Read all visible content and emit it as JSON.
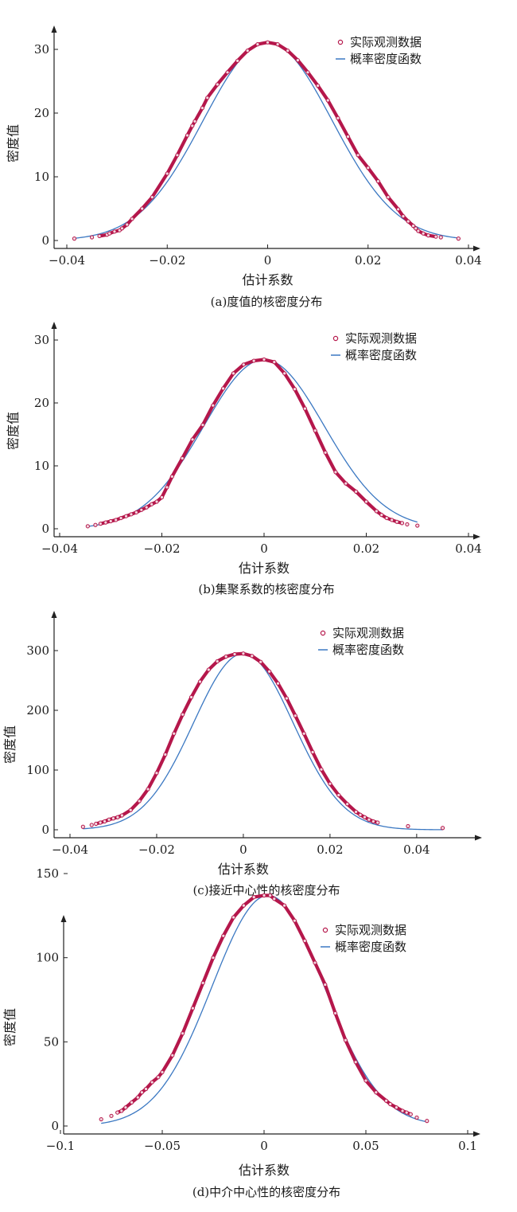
{
  "chart_data": [
    {
      "type": "line",
      "caption": "(a)度值的核密度分布",
      "xlabel": "估计系数",
      "ylabel": "密度值",
      "xlim": [
        -0.04,
        0.04
      ],
      "ylim": [
        0,
        30
      ],
      "xticks": [
        -0.04,
        -0.02,
        0,
        0.02,
        0.04
      ],
      "xtick_labels": [
        "−0.04",
        "−0.02",
        "0",
        "0.02",
        "0.04"
      ],
      "yticks": [
        0,
        10,
        20,
        30
      ],
      "ytick_labels": [
        "0",
        "10",
        "20",
        "30"
      ],
      "grid": false,
      "legend_position": "top-right",
      "series": [
        {
          "name": "实际观测数据",
          "kind": "scatter",
          "color": "#b5174b",
          "x": [
            -0.0385,
            -0.035,
            -0.0335,
            -0.032,
            -0.0315,
            -0.0305,
            -0.0295,
            -0.029,
            -0.028,
            -0.027,
            -0.025,
            -0.023,
            -0.02,
            -0.018,
            -0.016,
            -0.015,
            -0.0145,
            -0.013,
            -0.012,
            -0.01,
            -0.008,
            -0.006,
            -0.004,
            -0.002,
            0,
            0.002,
            0.004,
            0.006,
            0.008,
            0.01,
            0.012,
            0.014,
            0.016,
            0.018,
            0.02,
            0.022,
            0.024,
            0.026,
            0.027,
            0.028,
            0.029,
            0.0295,
            0.03,
            0.031,
            0.032,
            0.0335,
            0.0345,
            0.038
          ],
          "y": [
            0.3,
            0.5,
            0.7,
            0.9,
            1.1,
            1.4,
            1.6,
            1.9,
            2.5,
            3.4,
            5.0,
            6.8,
            10.5,
            13.4,
            16.5,
            18.0,
            18.7,
            20.8,
            22.4,
            24.5,
            26.4,
            28.2,
            29.8,
            30.8,
            31.1,
            30.8,
            29.8,
            28.3,
            26.4,
            24.3,
            22.0,
            19.2,
            16.3,
            13.4,
            11.4,
            9.3,
            6.8,
            4.9,
            3.8,
            3.0,
            2.3,
            1.9,
            1.5,
            1.1,
            0.8,
            0.6,
            0.5,
            0.3
          ]
        },
        {
          "name": "概率密度函数",
          "kind": "line",
          "color": "#3b78c2",
          "mu": 0,
          "peak": 31.1,
          "sigma": 0.01283
        }
      ]
    },
    {
      "type": "line",
      "caption": "(b)集聚系数的核密度分布",
      "xlabel": "估计系数",
      "ylabel": "密度值",
      "xlim": [
        -0.04,
        0.04
      ],
      "ylim": [
        0,
        30
      ],
      "xticks": [
        -0.04,
        -0.02,
        0,
        0.02,
        0.04
      ],
      "xtick_labels": [
        "−0.04",
        "−0.02",
        "0",
        "0.02",
        "0.04"
      ],
      "yticks": [
        0,
        10,
        20,
        30
      ],
      "ytick_labels": [
        "0",
        "10",
        "20",
        "30"
      ],
      "grid": false,
      "legend_position": "top-right",
      "series": [
        {
          "name": "实际观测数据",
          "kind": "scatter",
          "color": "#b5174b",
          "x": [
            -0.0345,
            -0.033,
            -0.032,
            -0.031,
            -0.03,
            -0.029,
            -0.028,
            -0.027,
            -0.026,
            -0.025,
            -0.024,
            -0.023,
            -0.022,
            -0.021,
            -0.02,
            -0.019,
            -0.018,
            -0.016,
            -0.014,
            -0.012,
            -0.01,
            -0.008,
            -0.006,
            -0.004,
            -0.002,
            0,
            0.002,
            0.004,
            0.006,
            0.008,
            0.01,
            0.012,
            0.014,
            0.016,
            0.018,
            0.02,
            0.022,
            0.023,
            0.024,
            0.025,
            0.026,
            0.027,
            0.028,
            0.03
          ],
          "y": [
            0.4,
            0.6,
            0.8,
            1.0,
            1.2,
            1.4,
            1.7,
            2.0,
            2.3,
            2.6,
            3.0,
            3.4,
            3.9,
            4.3,
            5.0,
            6.6,
            8.3,
            11.2,
            14.2,
            16.5,
            19.6,
            22.3,
            24.7,
            26.1,
            26.7,
            26.9,
            26.5,
            24.7,
            22.2,
            19.1,
            15.6,
            12.1,
            9.0,
            7.2,
            5.9,
            4.3,
            2.8,
            2.2,
            1.7,
            1.4,
            1.1,
            0.9,
            0.7,
            0.5
          ]
        },
        {
          "name": "概率密度函数",
          "kind": "line",
          "color": "#3b78c2",
          "mu": 0,
          "peak": 26.9,
          "sigma": 0.0118
        }
      ]
    },
    {
      "type": "line",
      "caption": "(c)接近中心性的核密度分布",
      "xlabel": "估计系数",
      "ylabel": "密度值",
      "xlim": [
        -0.04,
        0.047
      ],
      "ylim": [
        0,
        340
      ],
      "xticks": [
        -0.04,
        -0.02,
        0,
        0.02,
        0.04
      ],
      "xtick_labels": [
        "−0.04",
        "−0.02",
        "0",
        "0.02",
        "0.04"
      ],
      "yticks": [
        0,
        100,
        200,
        300
      ],
      "ytick_labels": [
        "0",
        "100",
        "200",
        "300"
      ],
      "grid": false,
      "legend_position": "top-right",
      "series": [
        {
          "name": "实际观测数据",
          "kind": "scatter",
          "color": "#b5174b",
          "x": [
            -0.037,
            -0.035,
            -0.034,
            -0.033,
            -0.032,
            -0.031,
            -0.03,
            -0.029,
            -0.028,
            -0.026,
            -0.024,
            -0.022,
            -0.02,
            -0.018,
            -0.016,
            -0.014,
            -0.012,
            -0.01,
            -0.008,
            -0.006,
            -0.004,
            -0.002,
            0,
            0.002,
            0.004,
            0.006,
            0.008,
            0.01,
            0.012,
            0.014,
            0.016,
            0.018,
            0.02,
            0.022,
            0.024,
            0.026,
            0.027,
            0.028,
            0.029,
            0.03,
            0.031,
            0.038,
            0.046
          ],
          "y": [
            5,
            8,
            10,
            12,
            14,
            17,
            19,
            21,
            24,
            33,
            48,
            68,
            95,
            126,
            161,
            193,
            222,
            248,
            268,
            282,
            290,
            294,
            295,
            291,
            281,
            265,
            245,
            220,
            191,
            161,
            130,
            101,
            77,
            58,
            43,
            30,
            25,
            21,
            17,
            14,
            12,
            6,
            3
          ]
        },
        {
          "name": "概率密度函数",
          "kind": "line",
          "color": "#3b78c2",
          "mu": 0,
          "peak": 295,
          "sigma": 0.0115
        }
      ]
    },
    {
      "type": "line",
      "caption": "(d)中介中心性的核密度分布",
      "xlabel": "估计系数",
      "ylabel": "密度值",
      "xlim": [
        -0.1,
        0.1
      ],
      "ylim": [
        0,
        160
      ],
      "xticks": [
        -0.1,
        -0.05,
        0,
        0.05,
        0.1
      ],
      "xtick_labels": [
        "−0.1",
        "−0.05",
        "0",
        "0.05",
        "0.1"
      ],
      "yticks": [
        0,
        50,
        100,
        150
      ],
      "ytick_labels": [
        "0",
        "50",
        "100",
        "150"
      ],
      "grid": false,
      "legend_position": "top-right",
      "series": [
        {
          "name": "实际观测数据",
          "kind": "scatter",
          "color": "#b5174b",
          "x": [
            -0.08,
            -0.075,
            -0.072,
            -0.07,
            -0.068,
            -0.065,
            -0.062,
            -0.06,
            -0.058,
            -0.055,
            -0.052,
            -0.05,
            -0.045,
            -0.04,
            -0.035,
            -0.03,
            -0.025,
            -0.02,
            -0.015,
            -0.01,
            -0.005,
            0,
            0.003,
            0.005,
            0.01,
            0.015,
            0.02,
            0.025,
            0.03,
            0.035,
            0.04,
            0.045,
            0.05,
            0.055,
            0.06,
            0.062,
            0.065,
            0.068,
            0.07,
            0.072,
            0.075,
            0.08
          ],
          "y": [
            4,
            6,
            8,
            9,
            11,
            14,
            17,
            20,
            22,
            26,
            29,
            32,
            42,
            55,
            70,
            85,
            100,
            113,
            124,
            131,
            136,
            137,
            137,
            135,
            131,
            122,
            110,
            97,
            84,
            67,
            51,
            38,
            27,
            20,
            15,
            13,
            11,
            9,
            8,
            7,
            5,
            3
          ]
        },
        {
          "name": "概率密度函数",
          "kind": "line",
          "color": "#3b78c2",
          "mu": 0.002,
          "peak": 137,
          "sigma": 0.0275
        }
      ]
    }
  ]
}
